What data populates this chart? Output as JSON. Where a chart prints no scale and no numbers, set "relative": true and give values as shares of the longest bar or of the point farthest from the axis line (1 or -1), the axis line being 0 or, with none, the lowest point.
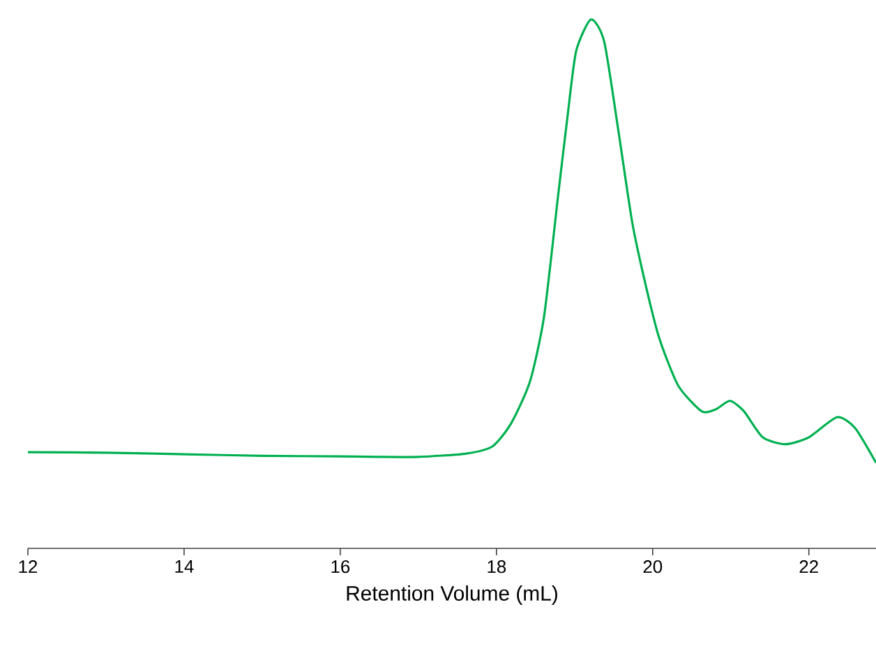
{
  "chart_data": {
    "type": "line",
    "xlabel": "Retention Volume (mL)",
    "relative": true,
    "xlim": [
      12,
      22.86
    ],
    "xticks": [
      12,
      14,
      16,
      18,
      20,
      22
    ],
    "marker": "none",
    "line_style": "solid",
    "series": [
      {
        "color": "#00b050",
        "x": [
          12,
          13,
          14,
          15,
          16,
          16.5,
          17.0,
          17.6,
          17.95,
          18.19,
          18.43,
          18.61,
          18.79,
          18.91,
          19.02,
          19.21,
          19.38,
          19.56,
          19.74,
          19.92,
          20.09,
          20.33,
          20.63,
          20.81,
          20.99,
          21.17,
          21.41,
          21.7,
          22.0,
          22.36,
          22.59,
          22.86
        ],
        "values": [
          0.182,
          0.181,
          0.178,
          0.175,
          0.174,
          0.173,
          0.173,
          0.179,
          0.193,
          0.237,
          0.316,
          0.439,
          0.668,
          0.817,
          0.94,
          1.0,
          0.958,
          0.791,
          0.615,
          0.492,
          0.395,
          0.307,
          0.259,
          0.263,
          0.279,
          0.259,
          0.21,
          0.197,
          0.21,
          0.248,
          0.228,
          0.162
        ]
      }
    ]
  }
}
